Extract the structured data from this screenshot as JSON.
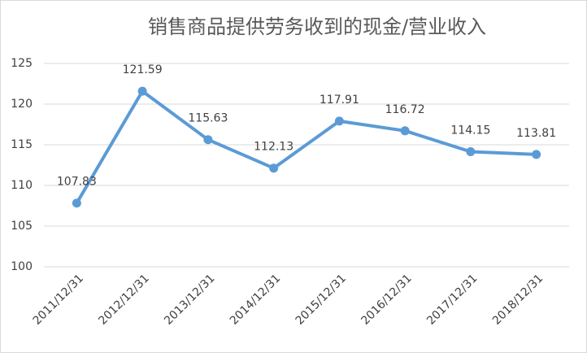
{
  "chart_data": {
    "type": "line",
    "title": "销售商品提供劳务收到的现金/营业收入",
    "categories": [
      "2011/12/31",
      "2012/12/31",
      "2013/12/31",
      "2014/12/31",
      "2015/12/31",
      "2016/12/31",
      "2017/12/31",
      "2018/12/31"
    ],
    "values": [
      107.83,
      121.59,
      115.63,
      112.13,
      117.91,
      116.72,
      114.15,
      113.81
    ],
    "color": "#5b9bd5",
    "ylim": [
      100,
      125
    ],
    "yticks": [
      100,
      105,
      110,
      115,
      120,
      125
    ],
    "grid": true
  }
}
